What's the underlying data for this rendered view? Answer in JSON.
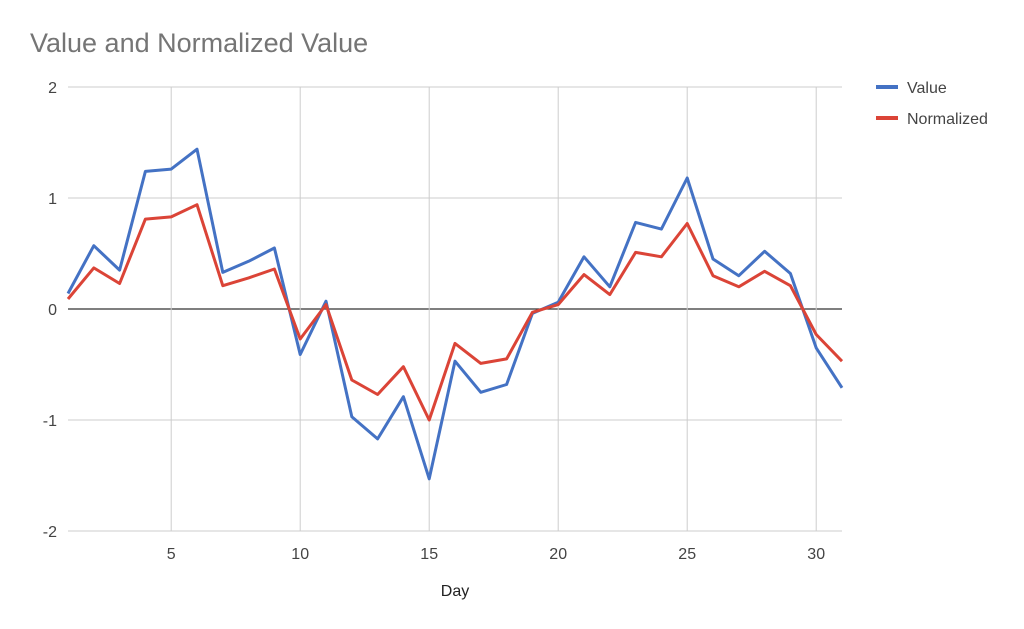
{
  "chart_data": {
    "type": "line",
    "title": "Value and Normalized Value",
    "xlabel": "Day",
    "ylabel": "",
    "xlim": [
      1,
      31
    ],
    "ylim": [
      -2,
      2
    ],
    "x_ticks": [
      5,
      10,
      15,
      20,
      25,
      30
    ],
    "y_ticks": [
      -2,
      -1,
      0,
      1,
      2
    ],
    "grid": true,
    "zero_line": true,
    "legend_position": "right",
    "x": [
      1,
      2,
      3,
      4,
      5,
      6,
      7,
      8,
      9,
      10,
      11,
      12,
      13,
      14,
      15,
      16,
      17,
      18,
      19,
      20,
      21,
      22,
      23,
      24,
      25,
      26,
      27,
      28,
      29,
      30,
      31
    ],
    "series": [
      {
        "name": "Value",
        "color": "#4472C4",
        "values": [
          0.14,
          0.57,
          0.35,
          1.24,
          1.26,
          1.44,
          0.33,
          0.43,
          0.55,
          -0.41,
          0.07,
          -0.97,
          -1.17,
          -0.79,
          -1.53,
          -0.47,
          -0.75,
          -0.68,
          -0.04,
          0.06,
          0.47,
          0.2,
          0.78,
          0.72,
          1.18,
          0.45,
          0.3,
          0.52,
          0.32,
          -0.35,
          -0.71
        ]
      },
      {
        "name": "Normalized",
        "color": "#DB4437",
        "values": [
          0.09,
          0.37,
          0.23,
          0.81,
          0.83,
          0.94,
          0.21,
          0.28,
          0.36,
          -0.27,
          0.04,
          -0.64,
          -0.77,
          -0.52,
          -1.0,
          -0.31,
          -0.49,
          -0.45,
          -0.03,
          0.04,
          0.31,
          0.13,
          0.51,
          0.47,
          0.77,
          0.3,
          0.2,
          0.34,
          0.21,
          -0.23,
          -0.47
        ]
      }
    ]
  }
}
